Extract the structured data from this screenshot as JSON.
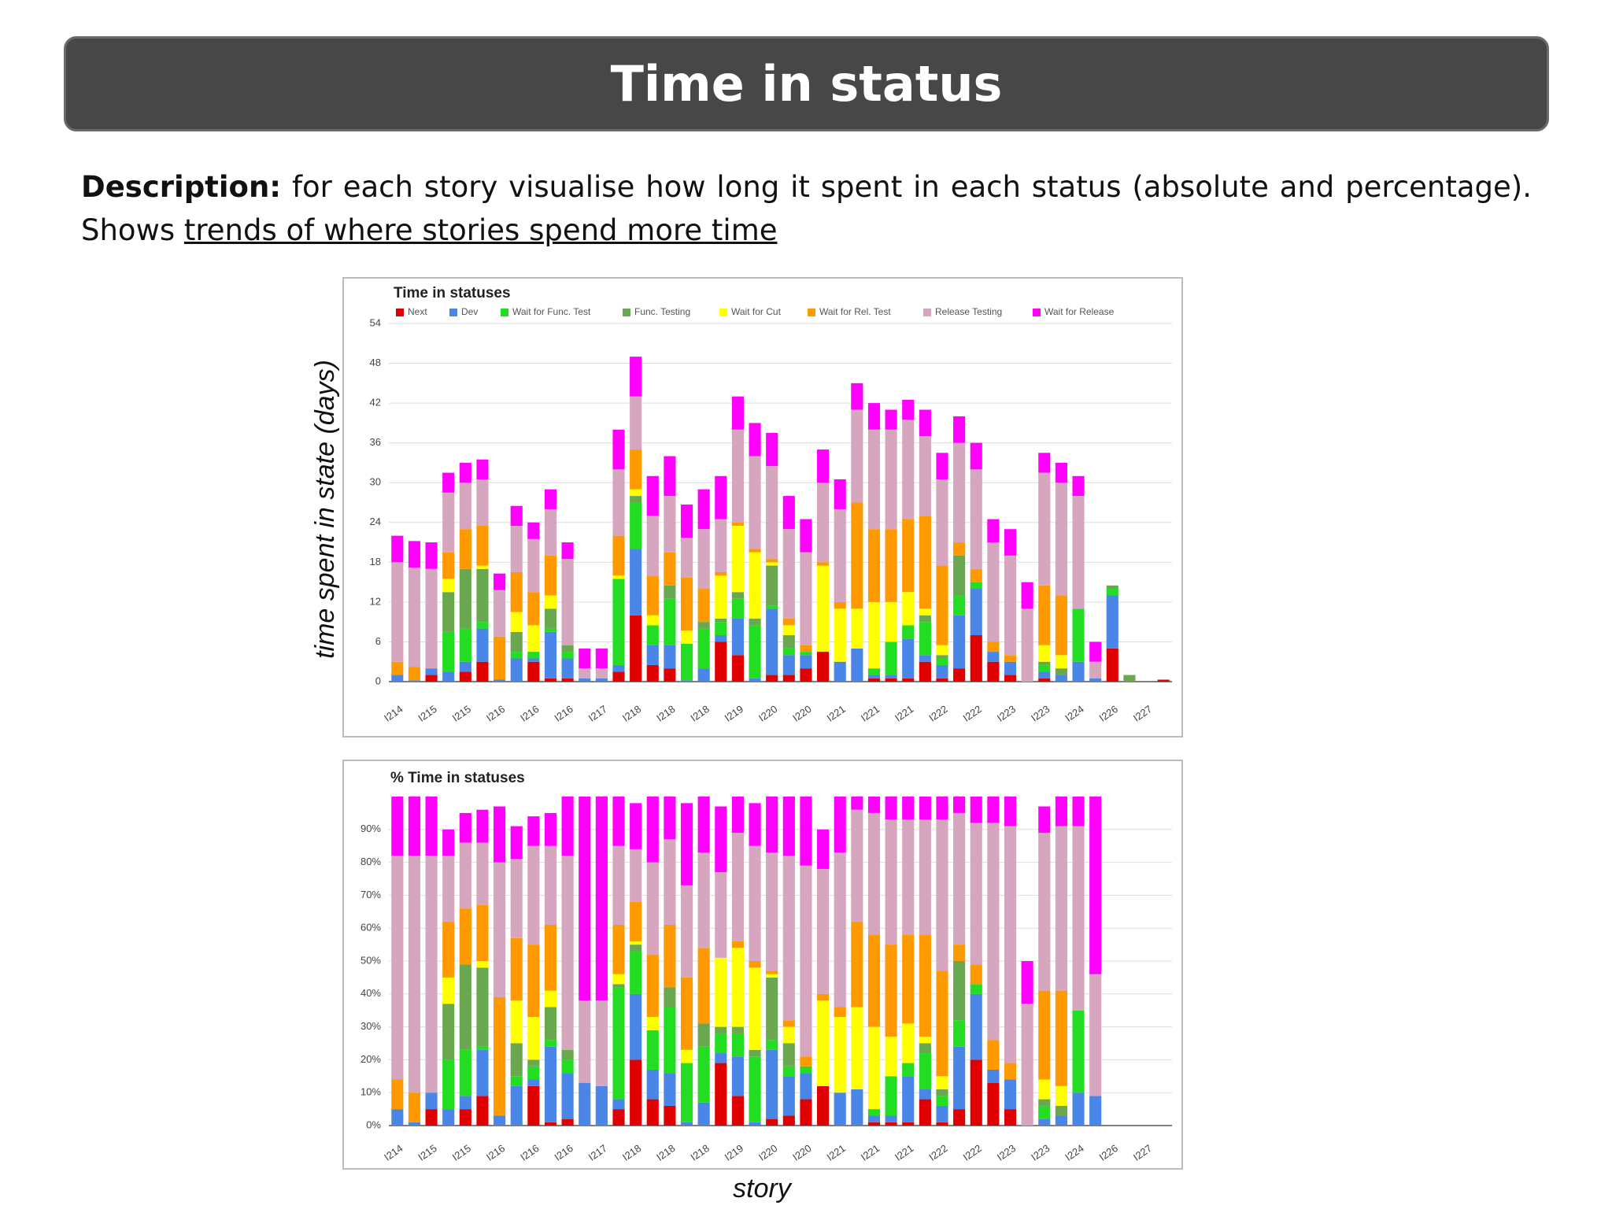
{
  "header": {
    "title": "Time in status"
  },
  "description": {
    "label": "Description:",
    "text": "for each story visualise how long it spent in each status (absolute and percentage). Shows",
    "link": "trends of where stories spend more time"
  },
  "chart_data": [
    {
      "type": "stacked_bar",
      "title": "Time in statuses",
      "y_label": "time spent in state (days)",
      "categories": [
        "I214",
        null,
        "I215",
        null,
        "I215",
        null,
        "I216",
        null,
        "I216",
        null,
        "I216",
        null,
        "I217",
        null,
        "I218",
        null,
        "I218",
        null,
        "I218",
        null,
        "I219",
        null,
        "I220",
        null,
        "I220",
        null,
        "I221",
        null,
        "I221",
        null,
        "I221",
        null,
        "I222",
        null,
        "I222",
        null,
        "I223",
        null,
        "I223",
        null,
        "I224",
        null,
        "I226",
        null,
        "I227",
        null
      ],
      "ylim": [
        0,
        54
      ],
      "yticks": [
        0,
        6,
        12,
        18,
        24,
        30,
        36,
        42,
        48,
        54
      ],
      "grid": true,
      "legend": "top",
      "series": [
        {
          "name": "Next",
          "color": "#e00000",
          "values": [
            0,
            0,
            1,
            0,
            1.5,
            3,
            0,
            0,
            3,
            0.5,
            0.5,
            0,
            0,
            1.5,
            10,
            2.5,
            2,
            0,
            0,
            6,
            4,
            0,
            1,
            1,
            2,
            4.5,
            0,
            0,
            0.5,
            0.5,
            0.5,
            3,
            0.5,
            2,
            7,
            3,
            1,
            0,
            0.5,
            0,
            0,
            0,
            5,
            0,
            0,
            0.3
          ]
        },
        {
          "name": "Dev",
          "color": "#4a86e8",
          "values": [
            1,
            0.2,
            1,
            1.5,
            1.5,
            5,
            0.3,
            3.5,
            0.5,
            7,
            3,
            0.5,
            0.5,
            1,
            10,
            3,
            3.5,
            0.2,
            2,
            1,
            5.5,
            0.5,
            10,
            3,
            2,
            0,
            3,
            5,
            0.5,
            0.5,
            6,
            1,
            2,
            8,
            7,
            1.5,
            2,
            0,
            1,
            1,
            3,
            0.5,
            8,
            0,
            0,
            0
          ]
        },
        {
          "name": "Wait for Func. Test",
          "color": "#22dd22",
          "values": [
            0,
            0,
            0,
            6,
            5,
            1,
            0,
            1,
            1,
            0.5,
            1,
            0,
            0,
            13,
            7,
            3,
            7,
            5.5,
            6,
            2,
            3,
            8,
            0.5,
            1,
            0.5,
            0,
            0,
            0,
            1,
            5,
            2,
            5,
            1,
            3,
            1,
            0,
            0,
            0,
            1,
            0,
            8,
            0,
            1,
            0,
            0,
            0
          ]
        },
        {
          "name": "Func. Testing",
          "color": "#6aa84f",
          "values": [
            0,
            0,
            0,
            6,
            9,
            8,
            0,
            3,
            0,
            3,
            1,
            0,
            0,
            0,
            1,
            0,
            2,
            0,
            1,
            0.5,
            1,
            1,
            6,
            2,
            0,
            0,
            0,
            0,
            0,
            0,
            0,
            1,
            0.5,
            6,
            0,
            0,
            0,
            0,
            0.5,
            1,
            0,
            0,
            0.5,
            1,
            0,
            0
          ]
        },
        {
          "name": "Wait for Cut",
          "color": "#ffff00",
          "values": [
            0,
            0,
            0,
            2,
            0,
            0.5,
            0,
            3,
            4,
            2,
            0,
            0,
            0,
            0.5,
            1,
            1.5,
            0,
            2,
            0,
            6.5,
            10,
            10,
            0.5,
            1.5,
            0,
            13,
            8,
            6,
            10,
            6,
            5,
            1,
            1.5,
            0,
            0,
            0,
            0,
            0,
            2.5,
            2,
            0,
            0,
            0,
            0,
            0,
            0
          ]
        },
        {
          "name": "Wait for Rel. Test",
          "color": "#ff9900",
          "values": [
            2,
            2,
            0,
            4,
            6,
            6,
            6.5,
            6,
            5,
            6,
            0,
            0,
            0,
            6,
            6,
            6,
            5,
            8,
            5,
            0.5,
            0.5,
            0.5,
            0.5,
            1,
            1,
            0.5,
            1,
            16,
            11,
            11,
            11,
            14,
            12,
            2,
            2,
            1.5,
            1,
            0,
            9,
            9,
            0,
            0,
            0,
            0,
            0,
            0
          ]
        },
        {
          "name": "Release Testing",
          "color": "#d5a6bd",
          "values": [
            15,
            15,
            15,
            9,
            7,
            7,
            7,
            7,
            8,
            7,
            13,
            1.5,
            1.5,
            10,
            8,
            9,
            8.5,
            6,
            9,
            8,
            14,
            14,
            14,
            13.5,
            14,
            12,
            14,
            14,
            15,
            15,
            15,
            12,
            13,
            15,
            15,
            15,
            15,
            11,
            17,
            17,
            17,
            2.5,
            0,
            0,
            0,
            0
          ]
        },
        {
          "name": "Wait for Release",
          "color": "#ff00ff",
          "values": [
            4,
            4,
            4,
            3,
            3,
            3,
            2.5,
            3,
            2.5,
            3,
            2.5,
            3,
            3,
            6,
            6,
            6,
            6,
            5,
            6,
            6.5,
            5,
            5,
            5,
            5,
            5,
            5,
            4.5,
            4,
            4,
            3,
            3,
            4,
            4,
            4,
            4,
            3.5,
            4,
            4,
            3,
            3,
            3,
            3,
            0,
            0,
            0,
            0
          ]
        }
      ]
    },
    {
      "type": "stacked_bar",
      "title": "% Time in statuses",
      "x_label": "story",
      "categories": [
        "I214",
        null,
        "I215",
        null,
        "I215",
        null,
        "I216",
        null,
        "I216",
        null,
        "I216",
        null,
        "I217",
        null,
        "I218",
        null,
        "I218",
        null,
        "I218",
        null,
        "I219",
        null,
        "I220",
        null,
        "I220",
        null,
        "I221",
        null,
        "I221",
        null,
        "I221",
        null,
        "I222",
        null,
        "I222",
        null,
        "I223",
        null,
        "I223",
        null,
        "I224",
        null,
        "I226",
        null,
        "I227",
        null
      ],
      "ylim": [
        0,
        100
      ],
      "yticks": [
        {
          "value": 0,
          "label": "0%"
        },
        {
          "value": 10,
          "label": "10%"
        },
        {
          "value": 20,
          "label": "20%"
        },
        {
          "value": 30,
          "label": "30%"
        },
        {
          "value": 40,
          "label": "40%"
        },
        {
          "value": 50,
          "label": "50%"
        },
        {
          "value": 60,
          "label": "60%"
        },
        {
          "value": 70,
          "label": "70%"
        },
        {
          "value": 80,
          "label": "80%"
        },
        {
          "value": 90,
          "label": "90%"
        }
      ],
      "grid": true,
      "series": [
        {
          "color": "#e00000",
          "values": [
            0,
            0,
            5,
            0,
            5,
            9,
            0,
            0,
            12,
            1,
            2,
            0,
            0,
            5,
            20,
            8,
            6,
            0,
            0,
            19,
            9,
            0,
            2,
            3,
            8,
            12,
            0,
            0,
            1,
            1,
            1,
            8,
            1,
            5,
            20,
            13,
            5,
            0,
            0,
            0,
            0,
            0,
            0,
            0,
            0,
            0
          ]
        },
        {
          "color": "#4a86e8",
          "values": [
            5,
            1,
            5,
            5,
            4,
            14,
            3,
            12,
            2,
            23,
            14,
            13,
            12,
            3,
            20,
            9,
            10,
            1,
            7,
            3,
            12,
            1,
            21,
            12,
            8,
            0,
            10,
            11,
            2,
            2,
            14,
            3,
            5,
            19,
            20,
            4,
            9,
            0,
            2,
            3,
            10,
            9,
            0,
            0,
            0,
            0
          ]
        },
        {
          "color": "#22dd22",
          "values": [
            0,
            0,
            0,
            15,
            14,
            1,
            0,
            3,
            4,
            2,
            4,
            0,
            0,
            34,
            13,
            12,
            20,
            18,
            17,
            6,
            7,
            20,
            3,
            3,
            2,
            0,
            0,
            0,
            2,
            12,
            4,
            11,
            3,
            8,
            3,
            0,
            0,
            0,
            4,
            0,
            25,
            0,
            0,
            0,
            0,
            0
          ]
        },
        {
          "color": "#6aa84f",
          "values": [
            0,
            0,
            0,
            17,
            26,
            24,
            0,
            10,
            2,
            10,
            3,
            0,
            0,
            1,
            2,
            0,
            6,
            0,
            7,
            2,
            2,
            2,
            19,
            7,
            0,
            0,
            0,
            0,
            0,
            0,
            0,
            3,
            2,
            18,
            0,
            0,
            0,
            0,
            2,
            3,
            0,
            0,
            0,
            0,
            0,
            0
          ]
        },
        {
          "color": "#ffff00",
          "values": [
            0,
            0,
            0,
            8,
            0,
            2,
            0,
            13,
            13,
            5,
            0,
            0,
            0,
            3,
            1,
            4,
            0,
            4,
            0,
            21,
            24,
            25,
            1,
            5,
            0,
            26,
            23,
            25,
            25,
            12,
            12,
            2,
            4,
            0,
            0,
            0,
            0,
            0,
            6,
            6,
            0,
            0,
            0,
            0,
            0,
            0
          ]
        },
        {
          "color": "#ff9900",
          "values": [
            9,
            9,
            0,
            17,
            17,
            17,
            36,
            19,
            22,
            20,
            0,
            0,
            0,
            15,
            12,
            19,
            19,
            22,
            23,
            0,
            2,
            2,
            1,
            2,
            3,
            2,
            3,
            26,
            28,
            28,
            27,
            31,
            32,
            5,
            6,
            9,
            5,
            0,
            27,
            29,
            0,
            0,
            0,
            0,
            0,
            0
          ]
        },
        {
          "color": "#d5a6bd",
          "values": [
            68,
            72,
            72,
            20,
            20,
            19,
            41,
            24,
            30,
            24,
            59,
            25,
            26,
            24,
            16,
            28,
            26,
            28,
            29,
            26,
            33,
            35,
            36,
            50,
            58,
            38,
            47,
            34,
            37,
            38,
            35,
            35,
            46,
            40,
            43,
            66,
            72,
            37,
            48,
            50,
            56,
            37,
            0,
            0,
            0,
            0
          ]
        },
        {
          "color": "#ff00ff",
          "values": [
            18,
            18,
            18,
            8,
            9,
            10,
            17,
            10,
            9,
            10,
            18,
            62,
            62,
            15,
            14,
            20,
            13,
            25,
            17,
            20,
            11,
            13,
            17,
            18,
            21,
            12,
            17,
            4,
            5,
            7,
            7,
            7,
            7,
            5,
            8,
            8,
            9,
            13,
            8,
            9,
            9,
            54,
            0,
            0,
            0,
            0
          ]
        }
      ]
    }
  ]
}
